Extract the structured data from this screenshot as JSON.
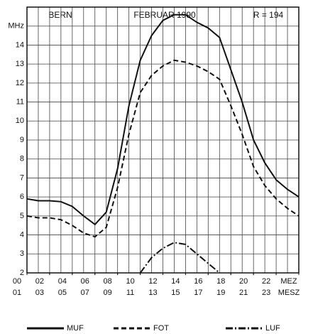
{
  "chart_data": {
    "type": "line",
    "title": "FEBRUAR 1990",
    "annotations": [
      "BERN",
      "R = 194"
    ],
    "x": [
      0,
      1,
      2,
      3,
      4,
      5,
      6,
      7,
      8,
      9,
      10,
      11,
      12,
      13,
      14,
      15,
      16,
      17,
      18,
      19,
      20,
      21,
      22,
      23,
      24
    ],
    "series": [
      {
        "name": "MUF",
        "color": "#111111",
        "dash": "solid",
        "values": [
          5.9,
          5.8,
          5.8,
          5.75,
          5.5,
          5.0,
          4.55,
          5.2,
          7.5,
          10.8,
          13.2,
          14.5,
          15.3,
          15.6,
          15.6,
          15.2,
          14.9,
          14.4,
          12.7,
          11.0,
          9.0,
          7.8,
          6.9,
          6.4,
          6.0
        ]
      },
      {
        "name": "FOT",
        "color": "#111111",
        "dash": "dashed",
        "values": [
          5.0,
          4.9,
          4.9,
          4.8,
          4.5,
          4.1,
          3.9,
          4.4,
          6.5,
          9.3,
          11.5,
          12.4,
          12.9,
          13.2,
          13.1,
          12.9,
          12.6,
          12.2,
          10.8,
          9.3,
          7.6,
          6.6,
          5.9,
          5.4,
          5.0
        ]
      },
      {
        "name": "LUF",
        "color": "#111111",
        "dash": "dashdot",
        "values": [
          null,
          null,
          null,
          null,
          null,
          null,
          null,
          null,
          null,
          null,
          2.0,
          2.8,
          3.3,
          3.6,
          3.5,
          3.0,
          2.5,
          2.0,
          null,
          null,
          null,
          null,
          null,
          null,
          null
        ]
      }
    ],
    "xlim": [
      0,
      24
    ],
    "xticks": [
      {
        "value": 0,
        "label": "00"
      },
      {
        "value": 2,
        "label": "02"
      },
      {
        "value": 4,
        "label": "04"
      },
      {
        "value": 6,
        "label": "06"
      },
      {
        "value": 8,
        "label": "08"
      },
      {
        "value": 10,
        "label": "10"
      },
      {
        "value": 12,
        "label": "12"
      },
      {
        "value": 14,
        "label": "14"
      },
      {
        "value": 16,
        "label": "16"
      },
      {
        "value": 18,
        "label": "18"
      },
      {
        "value": 20,
        "label": "20"
      },
      {
        "value": 22,
        "label": "22"
      },
      {
        "value": 24,
        "label": "MEZ"
      }
    ],
    "xticks2": [
      {
        "value": 0,
        "label": "01"
      },
      {
        "value": 2,
        "label": "03"
      },
      {
        "value": 4,
        "label": "05"
      },
      {
        "value": 6,
        "label": "07"
      },
      {
        "value": 8,
        "label": "09"
      },
      {
        "value": 10,
        "label": "11"
      },
      {
        "value": 12,
        "label": "13"
      },
      {
        "value": 14,
        "label": "15"
      },
      {
        "value": 16,
        "label": "17"
      },
      {
        "value": 18,
        "label": "19"
      },
      {
        "value": 20,
        "label": "21"
      },
      {
        "value": 22,
        "label": "23"
      },
      {
        "value": 24,
        "label": "MESZ"
      }
    ],
    "ylim": [
      2,
      16
    ],
    "yticks": [
      2,
      3,
      4,
      5,
      6,
      7,
      8,
      9,
      10,
      11,
      12,
      13,
      14,
      {
        "value": 15,
        "label": "MHz"
      }
    ],
    "grid": true
  }
}
